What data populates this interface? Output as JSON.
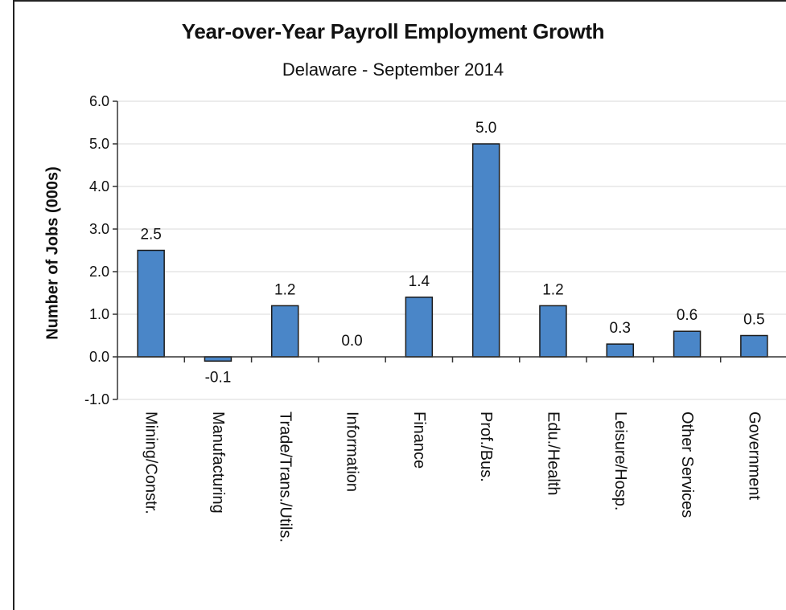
{
  "chart_data": {
    "type": "bar",
    "title": "Year-over-Year Payroll Employment Growth",
    "subtitle": "Delaware - September 2014",
    "ylabel": "Number of Jobs (000s)",
    "xlabel": "",
    "ylim": [
      -1.0,
      6.0
    ],
    "yticks": [
      "6.0",
      "5.0",
      "4.0",
      "3.0",
      "2.0",
      "1.0",
      "0.0",
      "-1.0"
    ],
    "ytick_values": [
      6,
      5,
      4,
      3,
      2,
      1,
      0,
      -1
    ],
    "grid": true,
    "legend": "none",
    "categories": [
      "Mining/Constr.",
      "Manufacturing",
      "Trade/Trans./Utils.",
      "Information",
      "Finance",
      "Prof./Bus.",
      "Edu./Health",
      "Leisure/Hosp.",
      "Other Services",
      "Government"
    ],
    "values": [
      2.5,
      -0.1,
      1.2,
      0.0,
      1.4,
      5.0,
      1.2,
      0.3,
      0.6,
      0.5
    ],
    "data_labels": [
      "2.5",
      "-0.1",
      "1.2",
      "0.0",
      "1.4",
      "5.0",
      "1.2",
      "0.3",
      "0.6",
      "0.5"
    ],
    "bar_color": "#4a86c8",
    "bar_edge_color": "#1a1a1a"
  }
}
